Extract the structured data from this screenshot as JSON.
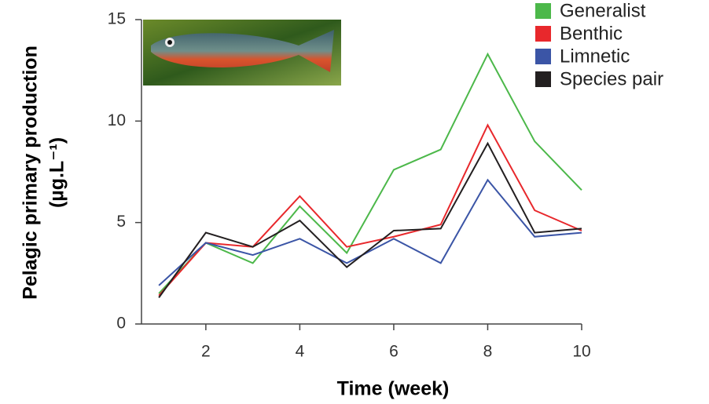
{
  "chart_data": {
    "type": "line",
    "x_label": "Time (week)",
    "y_label": [
      "Pelagic primary production",
      "(µg.L⁻¹)"
    ],
    "x": [
      1,
      2,
      3,
      4,
      5,
      6,
      7,
      8,
      9,
      10
    ],
    "series": [
      {
        "name": "Generalist",
        "color": "#4cb84a",
        "values": [
          1.5,
          4.0,
          3.0,
          5.8,
          3.5,
          7.6,
          8.6,
          13.3,
          9.0,
          6.6
        ]
      },
      {
        "name": "Benthic",
        "color": "#e8282c",
        "values": [
          1.4,
          4.0,
          3.8,
          6.3,
          3.8,
          4.3,
          4.9,
          9.8,
          5.6,
          4.6
        ]
      },
      {
        "name": "Limnetic",
        "color": "#3b55a6",
        "values": [
          1.9,
          4.0,
          3.4,
          4.2,
          3.0,
          4.2,
          3.0,
          7.1,
          4.3,
          4.5
        ]
      },
      {
        "name": "Species pair",
        "color": "#231f20",
        "values": [
          1.3,
          4.5,
          3.8,
          5.1,
          2.8,
          4.6,
          4.7,
          8.9,
          4.5,
          4.7
        ]
      }
    ],
    "xlim": [
      0.63,
      10
    ],
    "xticks": [
      2,
      4,
      6,
      8,
      10
    ],
    "ylim": [
      0,
      15
    ],
    "yticks": [
      0,
      5,
      10,
      15
    ]
  }
}
